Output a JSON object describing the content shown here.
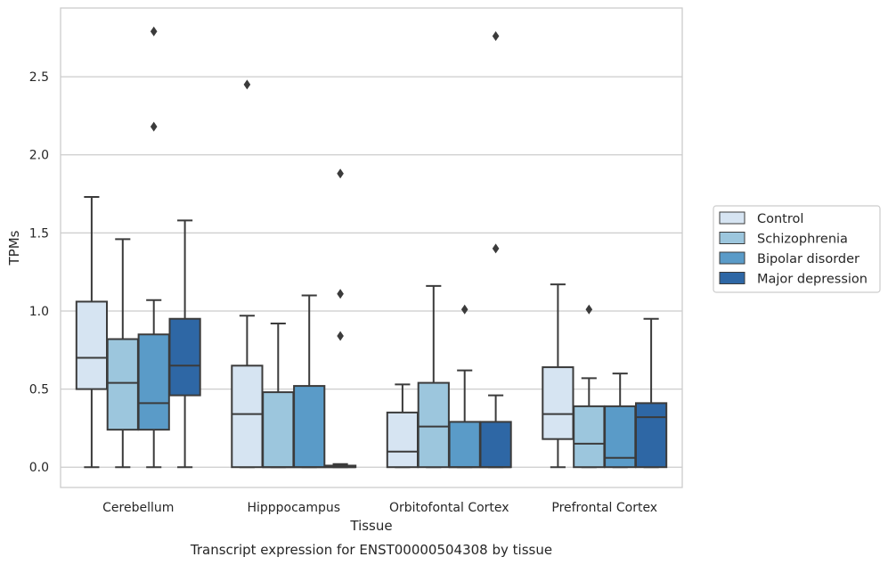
{
  "chart_data": {
    "type": "box",
    "title": "Transcript expression for ENST00000504308 by tissue",
    "xlabel": "Tissue",
    "ylabel": "TPMs",
    "ylim": [
      -0.13,
      2.94
    ],
    "yticks": [
      0.0,
      0.5,
      1.0,
      1.5,
      2.0,
      2.5
    ],
    "ytick_labels": [
      "0.0",
      "0.5",
      "1.0",
      "1.5",
      "2.0",
      "2.5"
    ],
    "grid": "horizontal",
    "legend_position": "right",
    "categories": [
      "Cerebellum",
      "Hipppocampus",
      "Orbitofontal Cortex",
      "Prefrontal Cortex"
    ],
    "series": [
      {
        "name": "Control",
        "color": "#d6e4f2",
        "boxes": [
          {
            "whislo": 0.0,
            "q1": 0.5,
            "med": 0.7,
            "q3": 1.06,
            "whishi": 1.73,
            "fliers": []
          },
          {
            "whislo": 0.0,
            "q1": 0.0,
            "med": 0.34,
            "q3": 0.65,
            "whishi": 0.97,
            "fliers": [
              2.45
            ]
          },
          {
            "whislo": 0.0,
            "q1": 0.0,
            "med": 0.1,
            "q3": 0.35,
            "whishi": 0.53,
            "fliers": []
          },
          {
            "whislo": 0.0,
            "q1": 0.18,
            "med": 0.34,
            "q3": 0.64,
            "whishi": 1.17,
            "fliers": []
          }
        ]
      },
      {
        "name": "Schizophrenia",
        "color": "#9cc6dd",
        "boxes": [
          {
            "whislo": 0.0,
            "q1": 0.24,
            "med": 0.54,
            "q3": 0.82,
            "whishi": 1.46,
            "fliers": []
          },
          {
            "whislo": 0.0,
            "q1": 0.0,
            "med": 0.0,
            "q3": 0.48,
            "whishi": 0.92,
            "fliers": []
          },
          {
            "whislo": 0.0,
            "q1": 0.0,
            "med": 0.26,
            "q3": 0.54,
            "whishi": 1.16,
            "fliers": []
          },
          {
            "whislo": 0.0,
            "q1": 0.0,
            "med": 0.15,
            "q3": 0.39,
            "whishi": 0.57,
            "fliers": [
              1.01
            ]
          }
        ]
      },
      {
        "name": "Bipolar disorder",
        "color": "#5a9bc8",
        "boxes": [
          {
            "whislo": 0.0,
            "q1": 0.24,
            "med": 0.41,
            "q3": 0.85,
            "whishi": 1.07,
            "fliers": [
              2.18,
              2.79
            ]
          },
          {
            "whislo": 0.0,
            "q1": 0.0,
            "med": 0.0,
            "q3": 0.52,
            "whishi": 1.1,
            "fliers": []
          },
          {
            "whislo": 0.0,
            "q1": 0.0,
            "med": 0.0,
            "q3": 0.29,
            "whishi": 0.62,
            "fliers": [
              1.01
            ]
          },
          {
            "whislo": 0.0,
            "q1": 0.0,
            "med": 0.06,
            "q3": 0.39,
            "whishi": 0.6,
            "fliers": []
          }
        ]
      },
      {
        "name": "Major depression",
        "color": "#2e67a5",
        "boxes": [
          {
            "whislo": 0.0,
            "q1": 0.46,
            "med": 0.65,
            "q3": 0.95,
            "whishi": 1.58,
            "fliers": []
          },
          {
            "whislo": 0.0,
            "q1": 0.0,
            "med": 0.0,
            "q3": 0.01,
            "whishi": 0.02,
            "fliers": [
              0.84,
              1.11,
              1.88
            ]
          },
          {
            "whislo": 0.0,
            "q1": 0.0,
            "med": 0.0,
            "q3": 0.29,
            "whishi": 0.46,
            "fliers": [
              1.4,
              2.76
            ]
          },
          {
            "whislo": 0.0,
            "q1": 0.0,
            "med": 0.32,
            "q3": 0.41,
            "whishi": 0.95,
            "fliers": []
          }
        ]
      }
    ]
  }
}
